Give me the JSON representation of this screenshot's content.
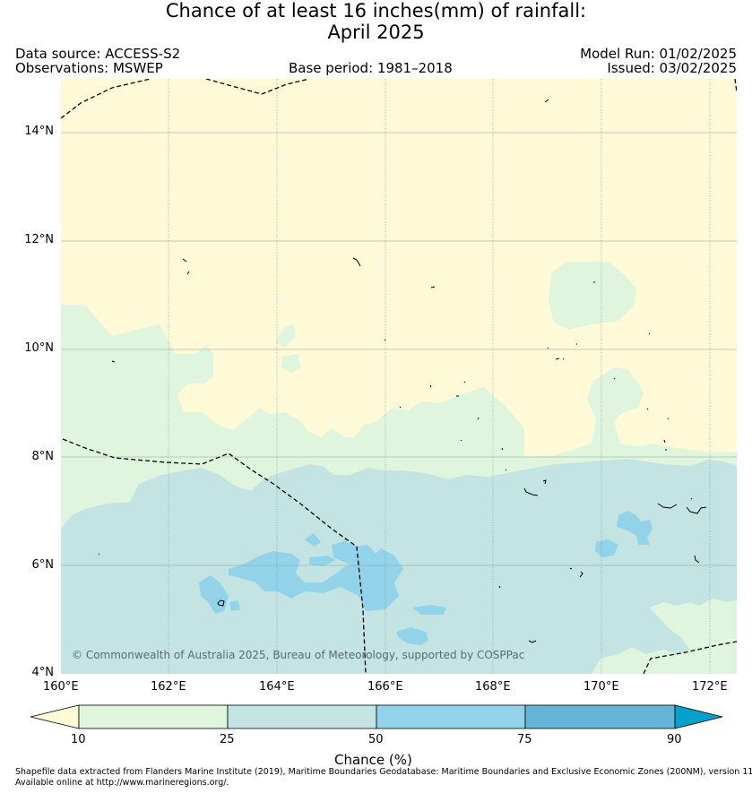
{
  "title_line1": "Chance of at least 16 inches(mm) of rainfall:",
  "title_line2": "April 2025",
  "data_source": "Data source: ACCESS-S2",
  "observations": "Observations: MSWEP",
  "base_period": "Base period: 1981–2018",
  "model_run": "Model Run: 01/02/2025",
  "issued": "Issued: 03/02/2025",
  "lat_labels": [
    "14°N",
    "12°N",
    "10°N",
    "8°N",
    "6°N",
    "4°N"
  ],
  "lon_labels": [
    "160°E",
    "162°E",
    "164°E",
    "166°E",
    "168°E",
    "170°E",
    "172°E"
  ],
  "copyright": "© Commonwealth of Australia 2025, Bureau of Meteorology, supported by COSPPac",
  "colorbar": {
    "label": "Chance (%)",
    "ticks": [
      "10",
      "25",
      "50",
      "75",
      "90"
    ],
    "colors": [
      "#fef9d7",
      "#e0f5de",
      "#c3e4e3",
      "#92d3ea",
      "#63b6d8",
      "#05a0cc"
    ]
  },
  "footer_line1": "Shapefile data extracted from Flanders Marine Institute (2019), Maritime Boundaries Geodatabase: Maritime Boundaries and Exclusive Economic Zones (200NM), version 11.",
  "footer_line2": "Available online at http://www.marineregions.org/."
}
